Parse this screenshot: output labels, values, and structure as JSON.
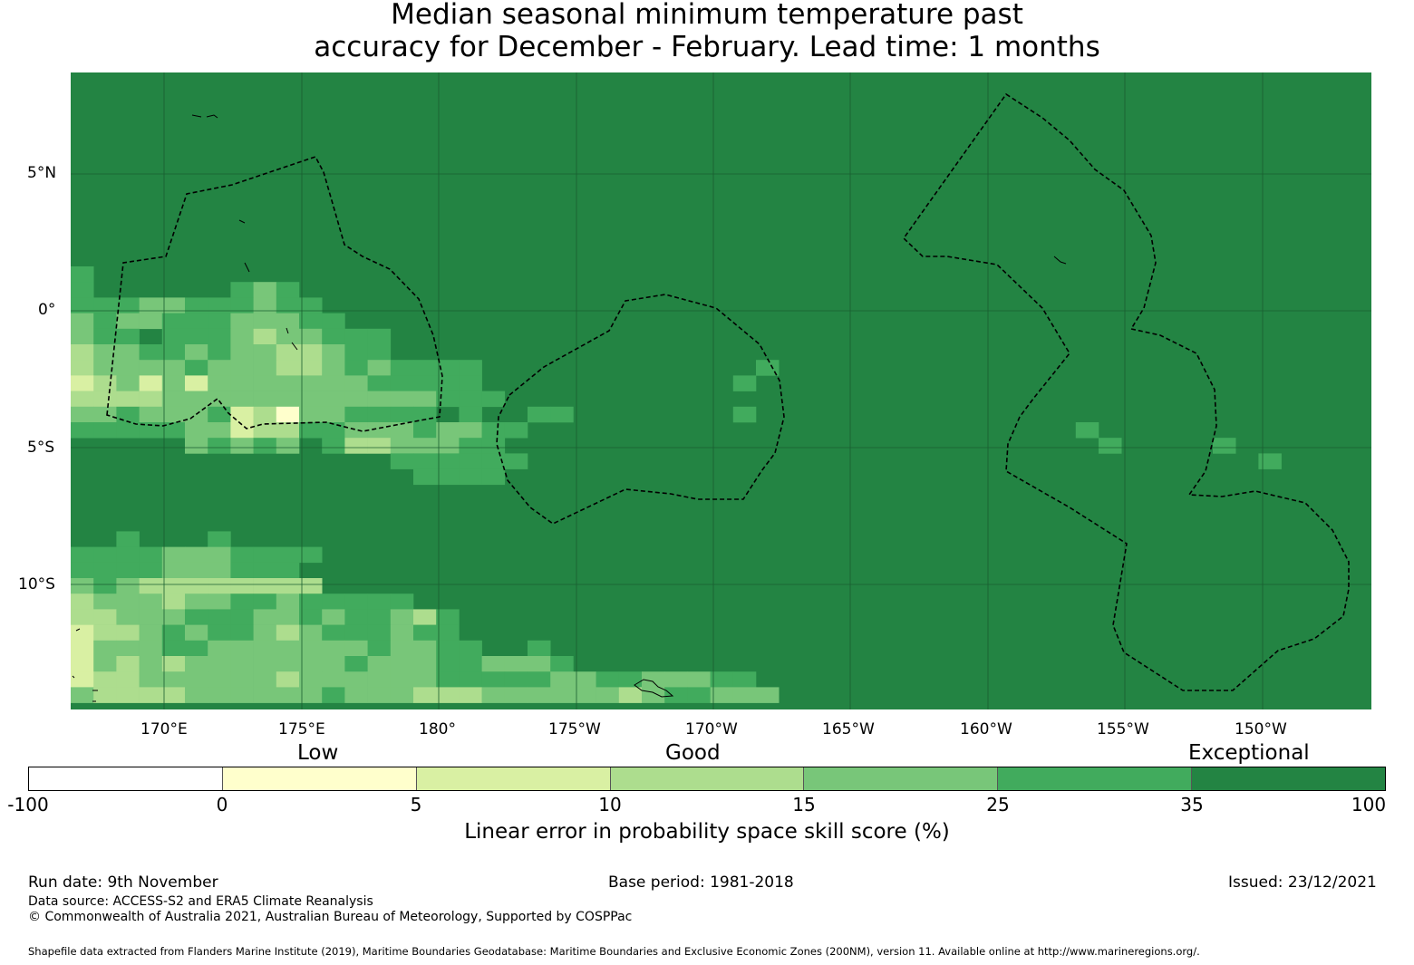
{
  "title": {
    "line1": "Median seasonal minimum temperature past",
    "line2": "accuracy for December - February. Lead time: 1 months"
  },
  "map": {
    "background_color": "#238443",
    "lat_labels": [
      "5°N",
      "0°",
      "5°S",
      "10°S"
    ],
    "lon_labels": [
      "170°E",
      "175°E",
      "180°",
      "175°W",
      "170°W",
      "165°W",
      "160°W",
      "155°W",
      "150°W"
    ]
  },
  "legend": {
    "categories": [
      "Low",
      "Good",
      "Exceptional"
    ],
    "ticks": [
      "-100",
      "0",
      "5",
      "10",
      "15",
      "25",
      "35",
      "100"
    ],
    "colors": [
      "#ffffff",
      "#ffffcc",
      "#d9f0a3",
      "#addd8e",
      "#78c679",
      "#41ab5d",
      "#238443"
    ],
    "label": "Linear error in probability space skill score (%)"
  },
  "footer": {
    "run_date": "Run date: 9th November",
    "base_period": "Base period: 1981-2018",
    "issued": "Issued: 23/12/2021",
    "data_source": "Data source: ACCESS-S2 and ERA5 Climate Reanalysis",
    "copyright": "© Commonwealth of Australia 2021, Australian Bureau of Meteorology, Supported by COSPPac",
    "shapefile": "Shapefile data extracted from Flanders Marine Institute (2019), Maritime Boundaries Geodatabase: Maritime Boundaries and Exclusive Economic Zones (200NM), version 11. Available online at http://www.marineregions.org/."
  }
}
